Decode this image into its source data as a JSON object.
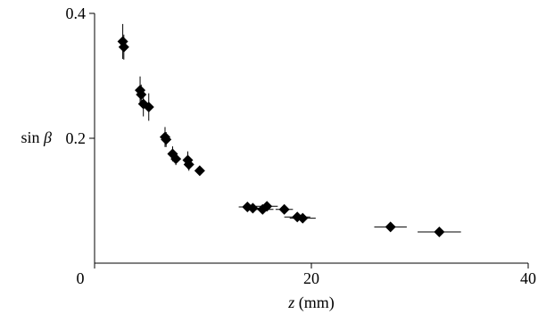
{
  "chart_data": {
    "type": "scatter",
    "title": "",
    "xlabel": {
      "var": "z",
      "unit": " (mm)"
    },
    "ylabel": {
      "prefix": "sin ",
      "var": "β"
    },
    "xlim": [
      0,
      40
    ],
    "ylim": [
      0,
      0.4
    ],
    "xticks": [
      0,
      20,
      40
    ],
    "xtick_labels": [
      "0",
      "20",
      "40"
    ],
    "yticks": [
      0.2,
      0.4
    ],
    "ytick_labels": [
      "0.2",
      "0.4"
    ],
    "grid": false,
    "legend": "none",
    "marker": "diamond",
    "marker_color": "#000000",
    "series": [
      {
        "points": [
          {
            "x": 2.6,
            "y": 0.355,
            "yerr": 0.028,
            "xerr": 0
          },
          {
            "x": 2.7,
            "y": 0.346,
            "yerr": 0.02,
            "xerr": 0
          },
          {
            "x": 4.2,
            "y": 0.277,
            "yerr": 0.022,
            "xerr": 0
          },
          {
            "x": 4.3,
            "y": 0.27,
            "yerr": 0.016,
            "xerr": 0
          },
          {
            "x": 4.5,
            "y": 0.255,
            "yerr": 0.02,
            "xerr": 0
          },
          {
            "x": 5.0,
            "y": 0.25,
            "yerr": 0.022,
            "xerr": 0
          },
          {
            "x": 6.5,
            "y": 0.202,
            "yerr": 0.016,
            "xerr": 0
          },
          {
            "x": 6.6,
            "y": 0.198,
            "yerr": 0.012,
            "xerr": 0
          },
          {
            "x": 7.2,
            "y": 0.175,
            "yerr": 0.012,
            "xerr": 0
          },
          {
            "x": 7.5,
            "y": 0.167,
            "yerr": 0.01,
            "xerr": 0
          },
          {
            "x": 8.6,
            "y": 0.165,
            "yerr": 0.014,
            "xerr": 0
          },
          {
            "x": 8.7,
            "y": 0.158,
            "yerr": 0.01,
            "xerr": 0
          },
          {
            "x": 9.7,
            "y": 0.148,
            "yerr": 0.008,
            "xerr": 0
          },
          {
            "x": 14.1,
            "y": 0.09,
            "yerr": 0,
            "xerr": 0.8
          },
          {
            "x": 14.6,
            "y": 0.088,
            "yerr": 0,
            "xerr": 0.8
          },
          {
            "x": 15.5,
            "y": 0.086,
            "yerr": 0,
            "xerr": 1.0
          },
          {
            "x": 15.9,
            "y": 0.091,
            "yerr": 0,
            "xerr": 1.0
          },
          {
            "x": 17.5,
            "y": 0.086,
            "yerr": 0,
            "xerr": 0.8
          },
          {
            "x": 18.7,
            "y": 0.074,
            "yerr": 0,
            "xerr": 1.2
          },
          {
            "x": 19.2,
            "y": 0.072,
            "yerr": 0,
            "xerr": 1.2
          },
          {
            "x": 27.3,
            "y": 0.058,
            "yerr": 0,
            "xerr": 1.5
          },
          {
            "x": 31.8,
            "y": 0.05,
            "yerr": 0,
            "xerr": 2.0
          }
        ]
      }
    ]
  }
}
